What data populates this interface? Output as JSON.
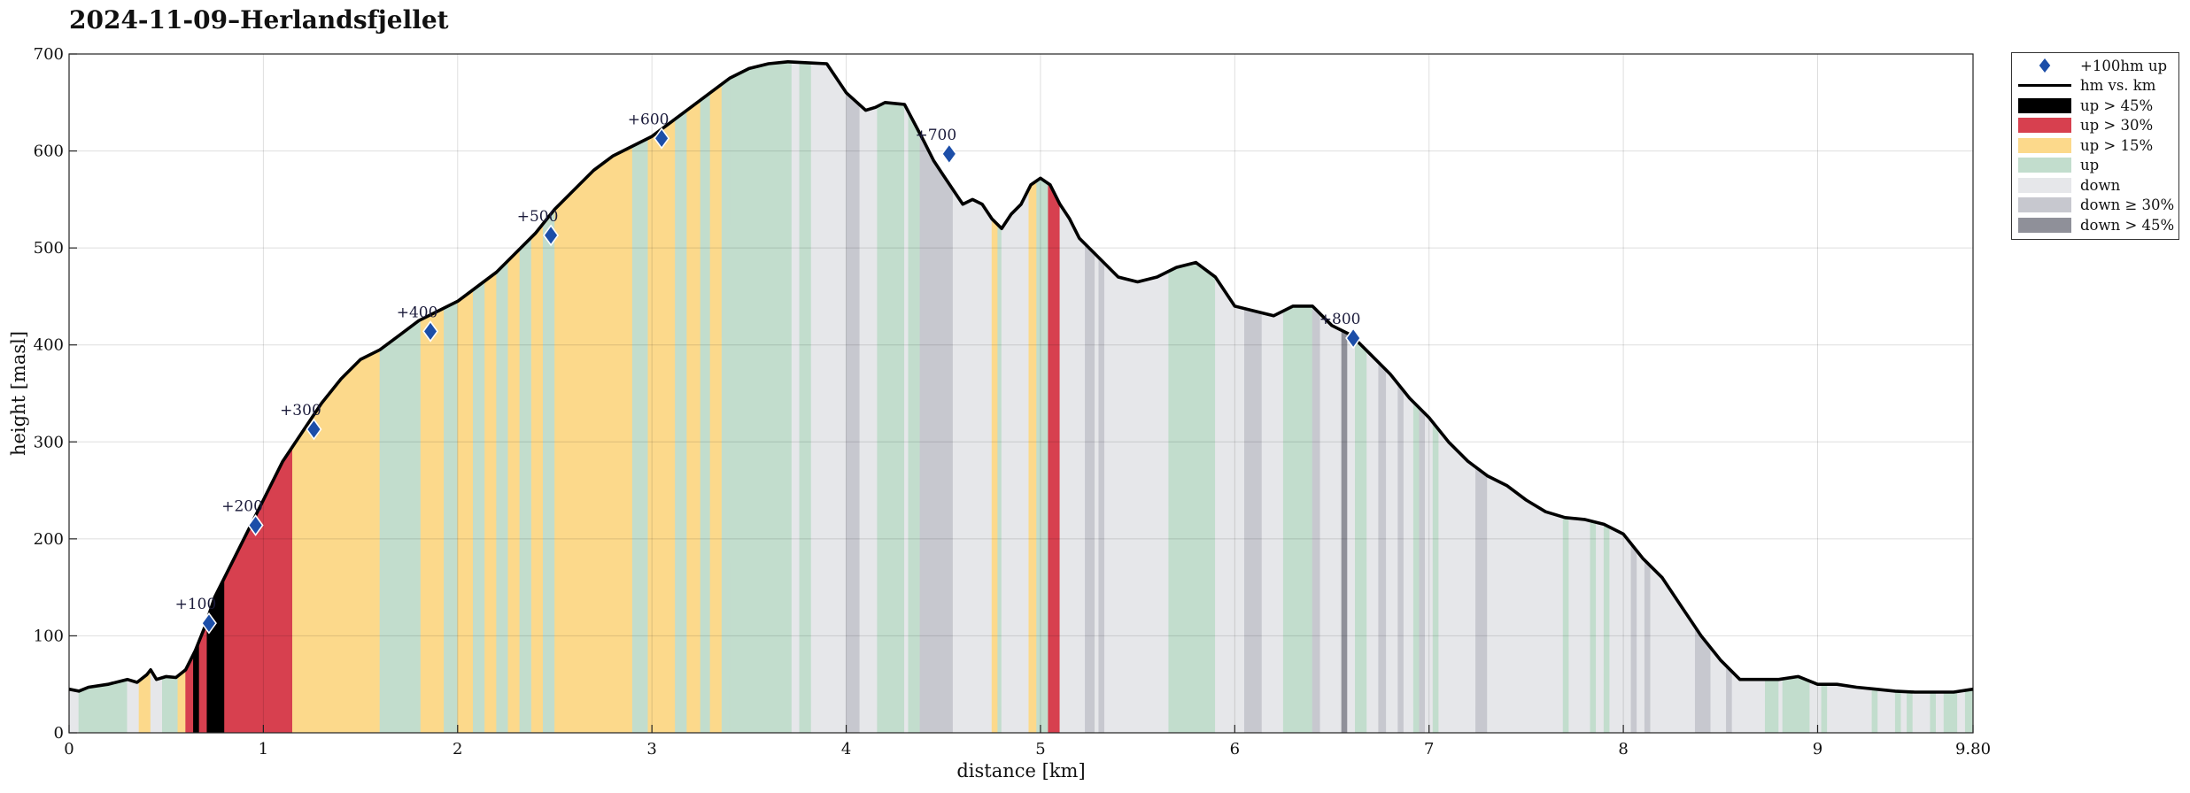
{
  "title": "2024-11-09–Herlandsfjellet",
  "chart_data": {
    "type": "area",
    "title": "2024-11-09–Herlandsfjellet",
    "xlabel": "distance [km]",
    "ylabel": "height [masl]",
    "xlim": [
      0,
      9.8
    ],
    "ylim": [
      0,
      700
    ],
    "xticks": [
      0,
      1,
      2,
      3,
      4,
      5,
      6,
      7,
      8,
      9,
      9.8
    ],
    "xtick_labels": [
      "0",
      "1",
      "2",
      "3",
      "4",
      "5",
      "6",
      "7",
      "8",
      "9",
      "9.80"
    ],
    "yticks": [
      0,
      100,
      200,
      300,
      400,
      500,
      600,
      700
    ],
    "grid": true,
    "legend_position": "outside-right",
    "colors": {
      "up45": "#000000",
      "up30": "#d7404f",
      "up15": "#fcd98b",
      "up": "#c2ddcd",
      "down": "#e6e7ea",
      "down30": "#c7c8cf",
      "down45": "#8f9099",
      "line": "#000000",
      "marker": "#1c4ea8"
    },
    "legend": [
      {
        "label": "+100hm up",
        "key": "marker"
      },
      {
        "label": "hm vs. km",
        "key": "line"
      },
      {
        "label": "up > 45%",
        "key": "up45"
      },
      {
        "label": "up > 30%",
        "key": "up30"
      },
      {
        "label": "up > 15%",
        "key": "up15"
      },
      {
        "label": "up",
        "key": "up"
      },
      {
        "label": "down",
        "key": "down"
      },
      {
        "label": "down ≥ 30%",
        "key": "down30"
      },
      {
        "label": "down > 45%",
        "key": "down45"
      }
    ],
    "series": [
      {
        "x": [
          0,
          0.05,
          0.1,
          0.2,
          0.3,
          0.35,
          0.4,
          0.42,
          0.45,
          0.5,
          0.55,
          0.6,
          0.65,
          0.7,
          0.75,
          0.8,
          0.9,
          1.0,
          1.1,
          1.15,
          1.2,
          1.3,
          1.4,
          1.5,
          1.6,
          1.7,
          1.8,
          1.9,
          2.0,
          2.1,
          2.2,
          2.3,
          2.4,
          2.5,
          2.6,
          2.7,
          2.8,
          2.9,
          3.0,
          3.1,
          3.2,
          3.3,
          3.4,
          3.5,
          3.6,
          3.7,
          3.8,
          3.9,
          4.0,
          4.1,
          4.15,
          4.2,
          4.3,
          4.4,
          4.45,
          4.5,
          4.55,
          4.6,
          4.65,
          4.7,
          4.75,
          4.8,
          4.85,
          4.9,
          4.95,
          5.0,
          5.05,
          5.1,
          5.15,
          5.2,
          5.3,
          5.4,
          5.5,
          5.6,
          5.7,
          5.8,
          5.9,
          6.0,
          6.1,
          6.2,
          6.3,
          6.4,
          6.5,
          6.6,
          6.7,
          6.8,
          6.9,
          7.0,
          7.1,
          7.2,
          7.3,
          7.4,
          7.5,
          7.6,
          7.7,
          7.8,
          7.9,
          8.0,
          8.1,
          8.2,
          8.3,
          8.4,
          8.5,
          8.6,
          8.7,
          8.8,
          8.9,
          9.0,
          9.1,
          9.2,
          9.3,
          9.4,
          9.5,
          9.6,
          9.7,
          9.8
        ],
        "y": [
          45,
          43,
          47,
          50,
          55,
          52,
          60,
          65,
          55,
          58,
          57,
          65,
          85,
          110,
          140,
          160,
          200,
          240,
          280,
          295,
          310,
          340,
          365,
          385,
          395,
          410,
          425,
          435,
          445,
          460,
          475,
          495,
          515,
          540,
          560,
          580,
          595,
          605,
          615,
          630,
          645,
          660,
          675,
          685,
          690,
          692,
          691,
          690,
          660,
          642,
          645,
          650,
          648,
          610,
          590,
          575,
          560,
          545,
          550,
          545,
          530,
          520,
          535,
          545,
          565,
          572,
          565,
          545,
          530,
          510,
          490,
          470,
          465,
          470,
          480,
          485,
          470,
          440,
          435,
          430,
          440,
          440,
          420,
          410,
          390,
          370,
          345,
          325,
          300,
          280,
          265,
          255,
          240,
          228,
          222,
          220,
          215,
          205,
          180,
          160,
          130,
          100,
          75,
          55,
          55,
          55,
          58,
          50,
          50,
          47,
          45,
          43,
          42,
          42,
          42,
          45
        ]
      }
    ],
    "markers": [
      {
        "x": 0.72,
        "y": 113,
        "label": "+100"
      },
      {
        "x": 0.96,
        "y": 214,
        "label": "+200"
      },
      {
        "x": 1.26,
        "y": 313,
        "label": "+300"
      },
      {
        "x": 1.86,
        "y": 414,
        "label": "+400"
      },
      {
        "x": 2.48,
        "y": 513,
        "label": "+500"
      },
      {
        "x": 3.05,
        "y": 613,
        "label": "+600"
      },
      {
        "x": 4.53,
        "y": 597,
        "label": "+700"
      },
      {
        "x": 6.61,
        "y": 407,
        "label": "+800"
      }
    ],
    "bands": [
      {
        "from": 0,
        "to": 0.05,
        "class": "down"
      },
      {
        "from": 0.05,
        "to": 0.3,
        "class": "up"
      },
      {
        "from": 0.3,
        "to": 0.36,
        "class": "down"
      },
      {
        "from": 0.36,
        "to": 0.42,
        "class": "up15"
      },
      {
        "from": 0.42,
        "to": 0.48,
        "class": "down"
      },
      {
        "from": 0.48,
        "to": 0.56,
        "class": "up"
      },
      {
        "from": 0.56,
        "to": 0.6,
        "class": "up15"
      },
      {
        "from": 0.6,
        "to": 0.64,
        "class": "up30"
      },
      {
        "from": 0.64,
        "to": 0.67,
        "class": "up45"
      },
      {
        "from": 0.67,
        "to": 0.71,
        "class": "up30"
      },
      {
        "from": 0.71,
        "to": 0.8,
        "class": "up45"
      },
      {
        "from": 0.8,
        "to": 1.15,
        "class": "up30"
      },
      {
        "from": 1.15,
        "to": 1.6,
        "class": "up15"
      },
      {
        "from": 1.6,
        "to": 1.81,
        "class": "up"
      },
      {
        "from": 1.81,
        "to": 1.93,
        "class": "up15"
      },
      {
        "from": 1.93,
        "to": 2.0,
        "class": "up"
      },
      {
        "from": 2.0,
        "to": 2.08,
        "class": "up15"
      },
      {
        "from": 2.08,
        "to": 2.14,
        "class": "up"
      },
      {
        "from": 2.14,
        "to": 2.2,
        "class": "up15"
      },
      {
        "from": 2.2,
        "to": 2.26,
        "class": "up"
      },
      {
        "from": 2.26,
        "to": 2.32,
        "class": "up15"
      },
      {
        "from": 2.32,
        "to": 2.38,
        "class": "up"
      },
      {
        "from": 2.38,
        "to": 2.44,
        "class": "up15"
      },
      {
        "from": 2.44,
        "to": 2.5,
        "class": "up"
      },
      {
        "from": 2.5,
        "to": 2.9,
        "class": "up15"
      },
      {
        "from": 2.9,
        "to": 2.98,
        "class": "up"
      },
      {
        "from": 2.98,
        "to": 3.12,
        "class": "up15"
      },
      {
        "from": 3.12,
        "to": 3.18,
        "class": "up"
      },
      {
        "from": 3.18,
        "to": 3.25,
        "class": "up15"
      },
      {
        "from": 3.25,
        "to": 3.3,
        "class": "up"
      },
      {
        "from": 3.3,
        "to": 3.36,
        "class": "up15"
      },
      {
        "from": 3.36,
        "to": 3.4,
        "class": "up"
      },
      {
        "from": 3.4,
        "to": 3.72,
        "class": "up"
      },
      {
        "from": 3.72,
        "to": 3.76,
        "class": "down"
      },
      {
        "from": 3.76,
        "to": 3.82,
        "class": "up"
      },
      {
        "from": 3.82,
        "to": 4.0,
        "class": "down"
      },
      {
        "from": 4.0,
        "to": 4.07,
        "class": "down30"
      },
      {
        "from": 4.07,
        "to": 4.16,
        "class": "down"
      },
      {
        "from": 4.16,
        "to": 4.3,
        "class": "up"
      },
      {
        "from": 4.3,
        "to": 4.32,
        "class": "down"
      },
      {
        "from": 4.32,
        "to": 4.38,
        "class": "up"
      },
      {
        "from": 4.38,
        "to": 4.55,
        "class": "down30"
      },
      {
        "from": 4.55,
        "to": 4.75,
        "class": "down"
      },
      {
        "from": 4.75,
        "to": 4.78,
        "class": "up15"
      },
      {
        "from": 4.78,
        "to": 4.8,
        "class": "up"
      },
      {
        "from": 4.8,
        "to": 4.94,
        "class": "down"
      },
      {
        "from": 4.94,
        "to": 4.98,
        "class": "up15"
      },
      {
        "from": 4.98,
        "to": 5.04,
        "class": "up"
      },
      {
        "from": 5.04,
        "to": 5.1,
        "class": "up30"
      },
      {
        "from": 5.1,
        "to": 5.23,
        "class": "down"
      },
      {
        "from": 5.23,
        "to": 5.28,
        "class": "down30"
      },
      {
        "from": 5.28,
        "to": 5.3,
        "class": "down"
      },
      {
        "from": 5.3,
        "to": 5.33,
        "class": "down30"
      },
      {
        "from": 5.33,
        "to": 5.66,
        "class": "down"
      },
      {
        "from": 5.66,
        "to": 5.9,
        "class": "up"
      },
      {
        "from": 5.9,
        "to": 6.05,
        "class": "down"
      },
      {
        "from": 6.05,
        "to": 6.14,
        "class": "down30"
      },
      {
        "from": 6.14,
        "to": 6.25,
        "class": "down"
      },
      {
        "from": 6.25,
        "to": 6.4,
        "class": "up"
      },
      {
        "from": 6.4,
        "to": 6.44,
        "class": "down30"
      },
      {
        "from": 6.44,
        "to": 6.55,
        "class": "down"
      },
      {
        "from": 6.55,
        "to": 6.58,
        "class": "down45"
      },
      {
        "from": 6.58,
        "to": 6.62,
        "class": "down"
      },
      {
        "from": 6.62,
        "to": 6.68,
        "class": "up"
      },
      {
        "from": 6.68,
        "to": 6.74,
        "class": "down"
      },
      {
        "from": 6.74,
        "to": 6.78,
        "class": "down30"
      },
      {
        "from": 6.78,
        "to": 6.84,
        "class": "down"
      },
      {
        "from": 6.84,
        "to": 6.87,
        "class": "down30"
      },
      {
        "from": 6.87,
        "to": 6.92,
        "class": "down"
      },
      {
        "from": 6.92,
        "to": 6.95,
        "class": "up"
      },
      {
        "from": 6.95,
        "to": 6.98,
        "class": "down30"
      },
      {
        "from": 6.98,
        "to": 7.02,
        "class": "down"
      },
      {
        "from": 7.02,
        "to": 7.05,
        "class": "up"
      },
      {
        "from": 7.05,
        "to": 7.24,
        "class": "down"
      },
      {
        "from": 7.24,
        "to": 7.3,
        "class": "down30"
      },
      {
        "from": 7.3,
        "to": 7.69,
        "class": "down"
      },
      {
        "from": 7.69,
        "to": 7.72,
        "class": "up"
      },
      {
        "from": 7.72,
        "to": 7.83,
        "class": "down"
      },
      {
        "from": 7.83,
        "to": 7.86,
        "class": "up"
      },
      {
        "from": 7.86,
        "to": 7.9,
        "class": "down"
      },
      {
        "from": 7.9,
        "to": 7.93,
        "class": "up"
      },
      {
        "from": 7.93,
        "to": 8.04,
        "class": "down"
      },
      {
        "from": 8.04,
        "to": 8.07,
        "class": "down30"
      },
      {
        "from": 8.07,
        "to": 8.11,
        "class": "down"
      },
      {
        "from": 8.11,
        "to": 8.14,
        "class": "down30"
      },
      {
        "from": 8.14,
        "to": 8.37,
        "class": "down"
      },
      {
        "from": 8.37,
        "to": 8.45,
        "class": "down30"
      },
      {
        "from": 8.45,
        "to": 8.53,
        "class": "down"
      },
      {
        "from": 8.53,
        "to": 8.56,
        "class": "down30"
      },
      {
        "from": 8.56,
        "to": 8.73,
        "class": "down"
      },
      {
        "from": 8.73,
        "to": 8.8,
        "class": "up"
      },
      {
        "from": 8.8,
        "to": 8.82,
        "class": "down"
      },
      {
        "from": 8.82,
        "to": 8.96,
        "class": "up"
      },
      {
        "from": 8.96,
        "to": 9.02,
        "class": "down"
      },
      {
        "from": 9.02,
        "to": 9.05,
        "class": "up"
      },
      {
        "from": 9.05,
        "to": 9.28,
        "class": "down"
      },
      {
        "from": 9.28,
        "to": 9.31,
        "class": "up"
      },
      {
        "from": 9.31,
        "to": 9.4,
        "class": "down"
      },
      {
        "from": 9.4,
        "to": 9.43,
        "class": "up"
      },
      {
        "from": 9.43,
        "to": 9.46,
        "class": "down"
      },
      {
        "from": 9.46,
        "to": 9.49,
        "class": "up"
      },
      {
        "from": 9.49,
        "to": 9.58,
        "class": "down"
      },
      {
        "from": 9.58,
        "to": 9.61,
        "class": "up"
      },
      {
        "from": 9.61,
        "to": 9.65,
        "class": "down"
      },
      {
        "from": 9.65,
        "to": 9.72,
        "class": "up"
      },
      {
        "from": 9.72,
        "to": 9.76,
        "class": "down"
      },
      {
        "from": 9.76,
        "to": 9.8,
        "class": "up"
      }
    ]
  }
}
